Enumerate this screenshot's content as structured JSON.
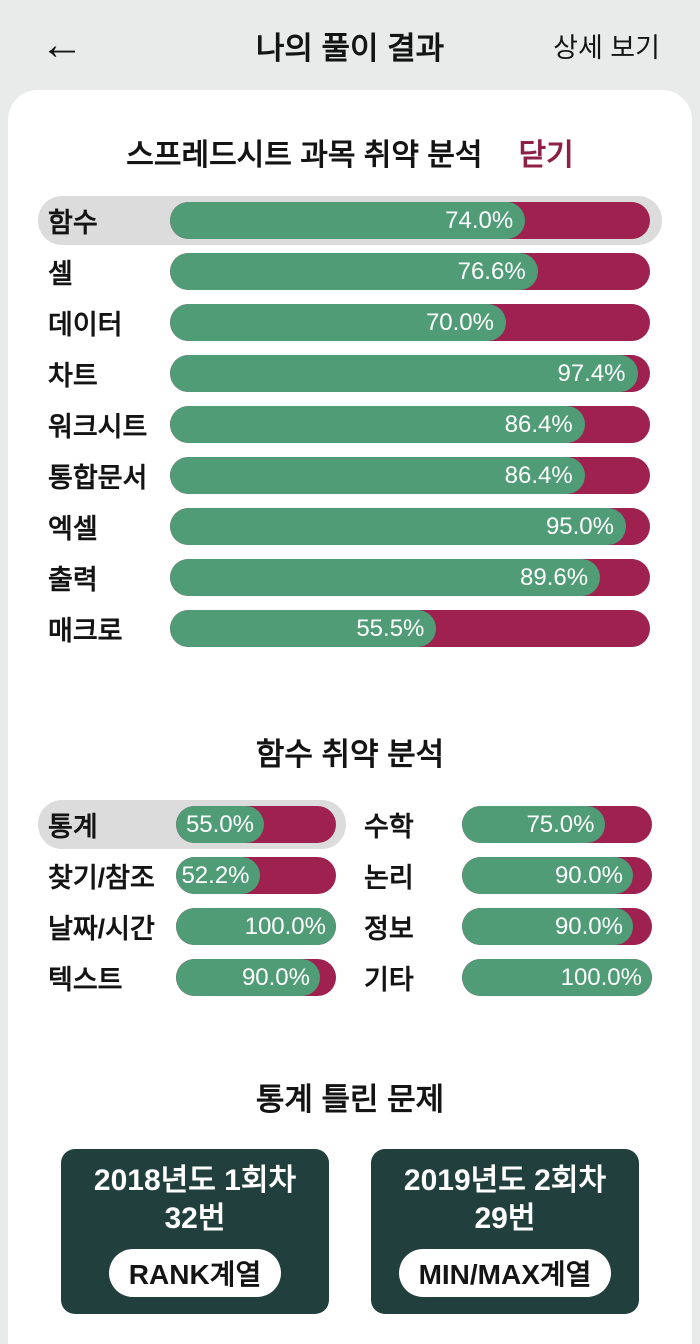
{
  "header": {
    "back_icon": "←",
    "title": "나의 풀이 결과",
    "detail_link": "상세 보기"
  },
  "colors": {
    "correct_green": "#4f9c77",
    "wrong_crimson": "#9e2150",
    "close_red": "#8e2047",
    "highlight_gray": "#dcdcdc",
    "dark_card_teal": "#21403d",
    "page_bg": "#e8ebe9"
  },
  "subject_section": {
    "title": "스프레드시트 과목 취약 분석",
    "close_label": "닫기",
    "rows": [
      {
        "label": "함수",
        "value": 74.0,
        "display": "74.0%"
      },
      {
        "label": "셀",
        "value": 76.6,
        "display": "76.6%"
      },
      {
        "label": "데이터",
        "value": 70.0,
        "display": "70.0%"
      },
      {
        "label": "차트",
        "value": 97.4,
        "display": "97.4%"
      },
      {
        "label": "워크시트",
        "value": 86.4,
        "display": "86.4%"
      },
      {
        "label": "통합문서",
        "value": 86.4,
        "display": "86.4%"
      },
      {
        "label": "엑셀",
        "value": 95.0,
        "display": "95.0%"
      },
      {
        "label": "출력",
        "value": 89.6,
        "display": "89.6%"
      },
      {
        "label": "매크로",
        "value": 55.5,
        "display": "55.5%"
      }
    ]
  },
  "function_section": {
    "title": "함수 취약 분석",
    "left_rows": [
      {
        "label": "통계",
        "value": 55.0,
        "display": "55.0%"
      },
      {
        "label": "찾기/참조",
        "value": 52.2,
        "display": "52.2%"
      },
      {
        "label": "날짜/시간",
        "value": 100.0,
        "display": "100.0%"
      },
      {
        "label": "텍스트",
        "value": 90.0,
        "display": "90.0%"
      }
    ],
    "right_rows": [
      {
        "label": "수학",
        "value": 75.0,
        "display": "75.0%"
      },
      {
        "label": "논리",
        "value": 90.0,
        "display": "90.0%"
      },
      {
        "label": "정보",
        "value": 90.0,
        "display": "90.0%"
      },
      {
        "label": "기타",
        "value": 100.0,
        "display": "100.0%"
      }
    ]
  },
  "wrong_problems_section": {
    "title": "통계 틀린 문제",
    "cards": [
      {
        "line1": "2018년도 1회차",
        "line2": "32번",
        "badge": "RANK계열"
      },
      {
        "line1": "2019년도 2회차",
        "line2": "29번",
        "badge": "MIN/MAX계열"
      }
    ]
  },
  "chart_data": [
    {
      "type": "bar",
      "orientation": "horizontal",
      "title": "스프레드시트 과목 취약 분석",
      "categories": [
        "함수",
        "셀",
        "데이터",
        "차트",
        "워크시트",
        "통합문서",
        "엑셀",
        "출력",
        "매크로"
      ],
      "values": [
        74.0,
        76.6,
        70.0,
        97.4,
        86.4,
        86.4,
        95.0,
        89.6,
        55.5
      ],
      "unit": "%",
      "xlim": [
        0,
        100
      ],
      "highlighted_category": "함수",
      "fill_color": "#4f9c77",
      "remainder_color": "#9e2150"
    },
    {
      "type": "bar",
      "orientation": "horizontal",
      "title": "함수 취약 분석",
      "categories": [
        "통계",
        "찾기/참조",
        "날짜/시간",
        "텍스트",
        "수학",
        "논리",
        "정보",
        "기타"
      ],
      "values": [
        55.0,
        52.2,
        100.0,
        90.0,
        75.0,
        90.0,
        90.0,
        100.0
      ],
      "unit": "%",
      "xlim": [
        0,
        100
      ],
      "highlighted_category": "통계",
      "fill_color": "#4f9c77",
      "remainder_color": "#9e2150"
    }
  ]
}
